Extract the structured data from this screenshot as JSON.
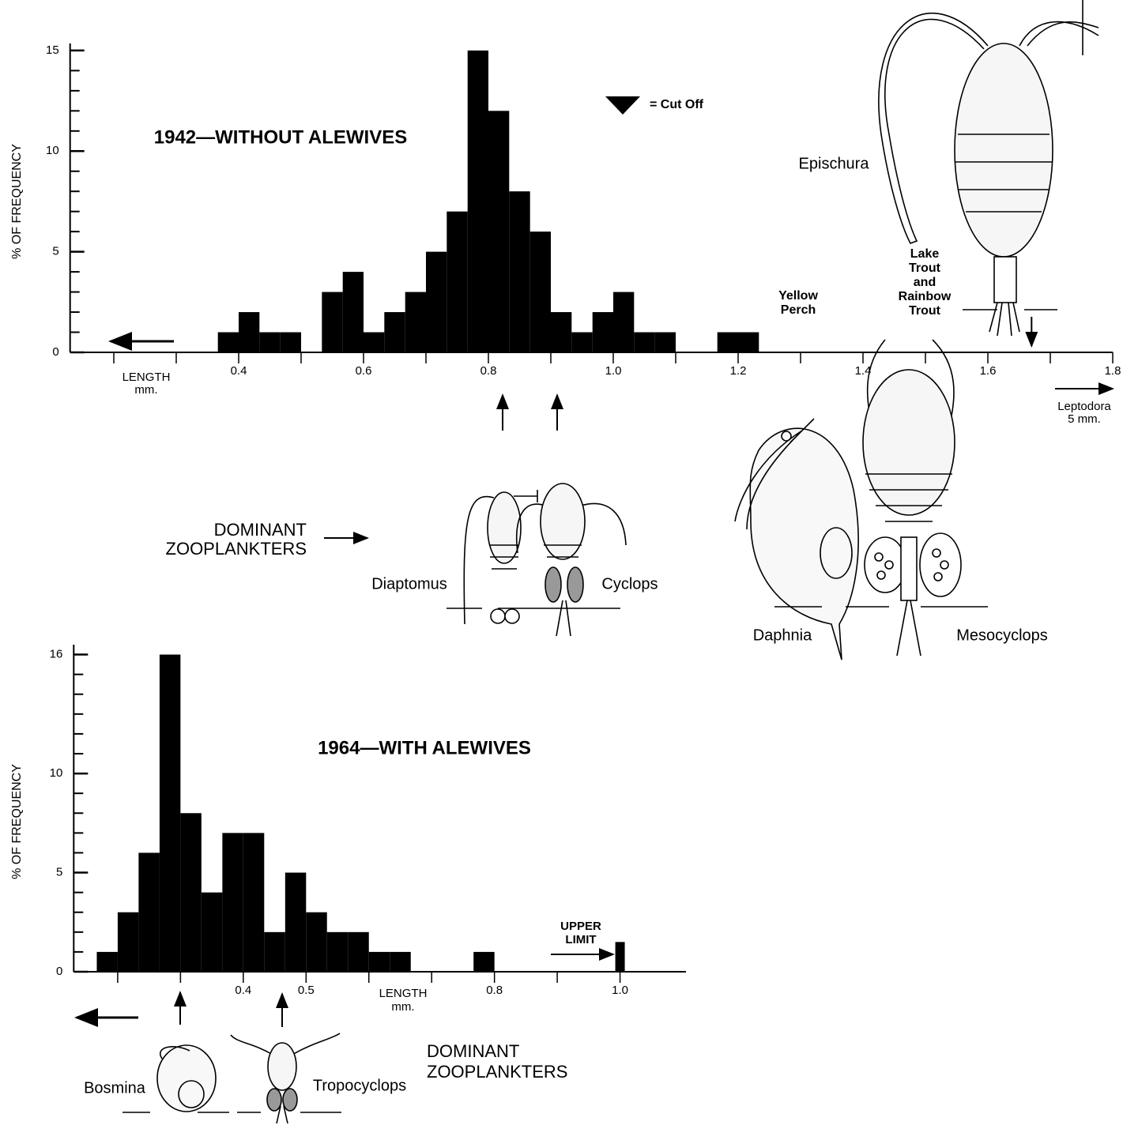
{
  "chart_data": [
    {
      "type": "histogram",
      "title": "1942—WITHOUT ALEWIVES",
      "y_label": "% OF FREQUENCY",
      "x_label": [
        "LENGTH",
        "mm."
      ],
      "color": "#000000",
      "bins": [
        0.3667,
        0.4,
        0.4333,
        0.4667,
        0.5,
        0.5333,
        0.5667,
        0.6,
        0.6333,
        0.6667,
        0.7,
        0.7333,
        0.7667,
        0.8,
        0.8333,
        0.8667,
        0.9,
        0.9333,
        0.9667,
        1.0,
        1.0333,
        1.0667,
        1.1,
        1.1333,
        1.1667,
        1.2,
        1.2333
      ],
      "values": [
        1,
        2,
        1,
        1,
        0,
        3,
        4,
        1,
        2,
        3,
        5,
        7,
        15,
        12,
        8,
        6,
        2,
        1,
        2,
        3,
        1,
        1,
        0,
        0,
        1,
        1
      ],
      "xlim": [
        0.13,
        1.8
      ],
      "ylim": [
        0,
        15.35
      ],
      "xticks": [
        0.4,
        0.6,
        0.8,
        {
          "value": 1,
          "label": "1.0"
        },
        1.2,
        1.4,
        1.6,
        1.8
      ],
      "x_minor_ticks": [
        0.2,
        0.3,
        0.5,
        0.7,
        0.9,
        1.1,
        1.3,
        1.5,
        1.7
      ],
      "yticks": [
        0,
        5,
        10,
        15
      ],
      "y_minor_ticks": [
        1,
        2,
        3,
        4,
        6,
        7,
        8,
        9,
        11,
        12,
        13,
        14
      ],
      "cut_off_x": 1.67,
      "legend": "= Cut Off",
      "notes": {
        "yellow_perch": [
          "Yellow",
          "Perch"
        ],
        "trout": [
          "Lake",
          "Trout",
          "and",
          "Rainbow",
          "Trout"
        ],
        "epischura": "Epischura",
        "leptodora": [
          "Leptodora",
          "5 mm."
        ]
      }
    },
    {
      "type": "histogram",
      "title": "1964—WITH ALEWIVES",
      "y_label": "% OF FREQUENCY",
      "x_label": [
        "LENGTH",
        "mm."
      ],
      "color": "#000000",
      "bins": [
        0.1667,
        0.2,
        0.2333,
        0.2667,
        0.3,
        0.3333,
        0.3667,
        0.4,
        0.4333,
        0.4667,
        0.5,
        0.5333,
        0.5667,
        0.6,
        0.6333,
        0.6667,
        0.7,
        0.7333,
        0.7667,
        0.8
      ],
      "values": [
        1,
        3,
        6,
        16,
        8,
        4,
        7,
        7,
        2,
        5,
        3,
        2,
        2,
        1,
        1,
        0,
        0,
        0,
        1
      ],
      "xlim": [
        0.13,
        1.105
      ],
      "ylim": [
        0,
        16.5
      ],
      "xticks": [
        0.4,
        0.5,
        0.8,
        {
          "value": 1,
          "label": "1.0"
        }
      ],
      "x_minor_ticks": [
        0.2,
        0.3,
        0.6,
        0.7,
        0.9
      ],
      "yticks": [
        0,
        5,
        10,
        16
      ],
      "y_minor_ticks": [
        1,
        2,
        3,
        4,
        6,
        7,
        8,
        9,
        11,
        12,
        13,
        14,
        15
      ],
      "upper_limit": {
        "label": [
          "UPPER",
          "LIMIT"
        ],
        "x": 1.0,
        "value": 1.5
      }
    }
  ],
  "dominant_1942": {
    "label": [
      "DOMINANT",
      "ZOOPLANKTERS"
    ],
    "organisms": [
      "Diaptomus",
      "Cyclops",
      "Daphnia",
      "Mesocyclops"
    ]
  },
  "dominant_1964": {
    "label": [
      "DOMINANT",
      "ZOOPLANKTERS"
    ],
    "organisms": [
      "Bosmina",
      "Tropocyclops"
    ]
  }
}
